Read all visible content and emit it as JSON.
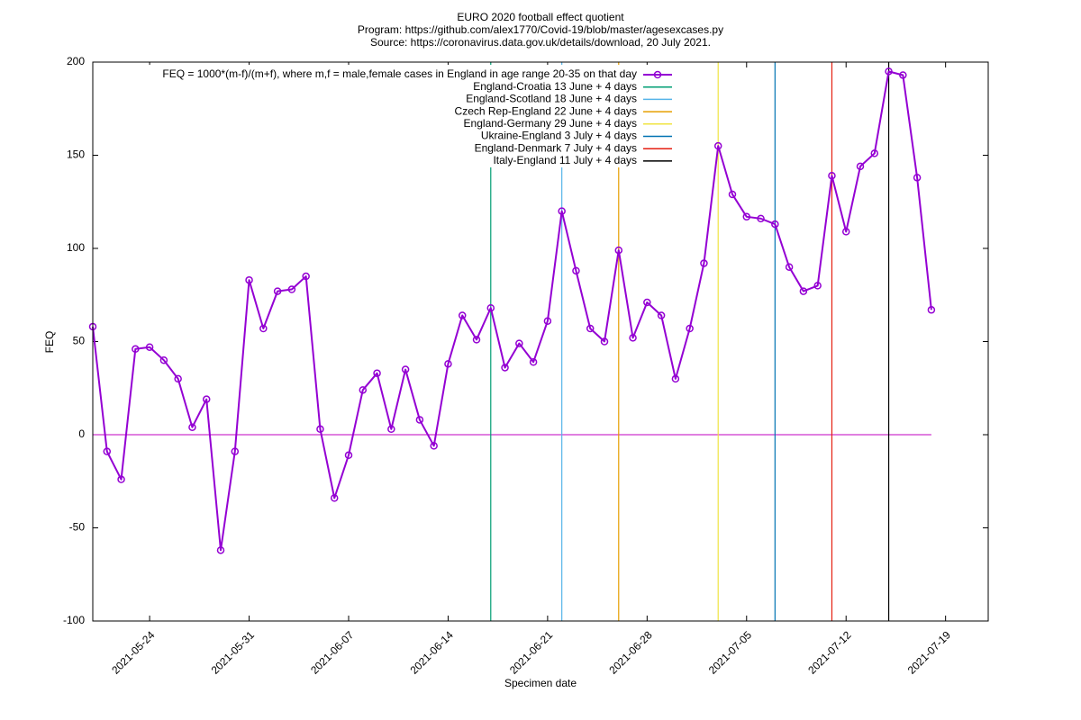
{
  "chart_data": {
    "type": "line",
    "title": "EURO 2020 football effect quotient",
    "subtitle": [
      "Program: https://github.com/alex1770/Covid-19/blob/master/agesexcases.py",
      "Source: https://coronavirus.data.gov.uk/details/download, 20 July 2021."
    ],
    "xlabel": "Specimen date",
    "ylabel": "FEQ",
    "x": [
      "2021-05-20",
      "2021-05-21",
      "2021-05-22",
      "2021-05-23",
      "2021-05-24",
      "2021-05-25",
      "2021-05-26",
      "2021-05-27",
      "2021-05-28",
      "2021-05-29",
      "2021-05-30",
      "2021-05-31",
      "2021-06-01",
      "2021-06-02",
      "2021-06-03",
      "2021-06-04",
      "2021-06-05",
      "2021-06-06",
      "2021-06-07",
      "2021-06-08",
      "2021-06-09",
      "2021-06-10",
      "2021-06-11",
      "2021-06-12",
      "2021-06-13",
      "2021-06-14",
      "2021-06-15",
      "2021-06-16",
      "2021-06-17",
      "2021-06-18",
      "2021-06-19",
      "2021-06-20",
      "2021-06-21",
      "2021-06-22",
      "2021-06-23",
      "2021-06-24",
      "2021-06-25",
      "2021-06-26",
      "2021-06-27",
      "2021-06-28",
      "2021-06-29",
      "2021-06-30",
      "2021-07-01",
      "2021-07-02",
      "2021-07-03",
      "2021-07-04",
      "2021-07-05",
      "2021-07-06",
      "2021-07-07",
      "2021-07-08",
      "2021-07-09",
      "2021-07-10",
      "2021-07-11",
      "2021-07-12",
      "2021-07-13",
      "2021-07-14",
      "2021-07-15",
      "2021-07-16",
      "2021-07-17",
      "2021-07-18"
    ],
    "series": [
      {
        "name": "FEQ = 1000*(m-f)/(m+f), where m,f = male,female cases in England in age range 20-35 on that day",
        "color": "#9400d3",
        "values": [
          58,
          -9,
          -24,
          46,
          47,
          40,
          30,
          4,
          19,
          -62,
          -9,
          83,
          57,
          77,
          78,
          85,
          3,
          -34,
          -11,
          24,
          33,
          3,
          35,
          8,
          -6,
          38,
          64,
          51,
          68,
          36,
          49,
          39,
          61,
          120,
          88,
          57,
          50,
          99,
          52,
          71,
          64,
          30,
          57,
          92,
          155,
          129,
          117,
          116,
          113,
          90,
          77,
          80,
          139,
          109,
          144,
          151,
          195,
          193,
          138,
          67
        ]
      }
    ],
    "vlines": [
      {
        "name": "England-Croatia 13 June + 4 days",
        "x": "2021-06-17",
        "color": "#009e73"
      },
      {
        "name": "England-Scotland 18 June + 4 days",
        "x": "2021-06-22",
        "color": "#56b4e9"
      },
      {
        "name": "Czech Rep-England 22 June + 4 days",
        "x": "2021-06-26",
        "color": "#e69f00"
      },
      {
        "name": "England-Germany 29 June + 4 days",
        "x": "2021-07-03",
        "color": "#f0e442"
      },
      {
        "name": "Ukraine-England 3 July + 4 days",
        "x": "2021-07-07",
        "color": "#0072b2"
      },
      {
        "name": "England-Denmark 7 July + 4 days",
        "x": "2021-07-11",
        "color": "#e51e10"
      },
      {
        "name": "Italy-England 11 July + 4 days",
        "x": "2021-07-15",
        "color": "#000000"
      }
    ],
    "hline": {
      "value": 0,
      "color": "#c000c0"
    },
    "xlim": [
      "2021-05-20",
      "2021-07-22"
    ],
    "xticks": [
      "2021-05-24",
      "2021-05-31",
      "2021-06-07",
      "2021-06-14",
      "2021-06-21",
      "2021-06-28",
      "2021-07-05",
      "2021-07-12",
      "2021-07-19"
    ],
    "ylim": [
      -100,
      200
    ],
    "yticks": [
      -100,
      -50,
      0,
      50,
      100,
      150,
      200
    ],
    "legend": "top-left"
  }
}
